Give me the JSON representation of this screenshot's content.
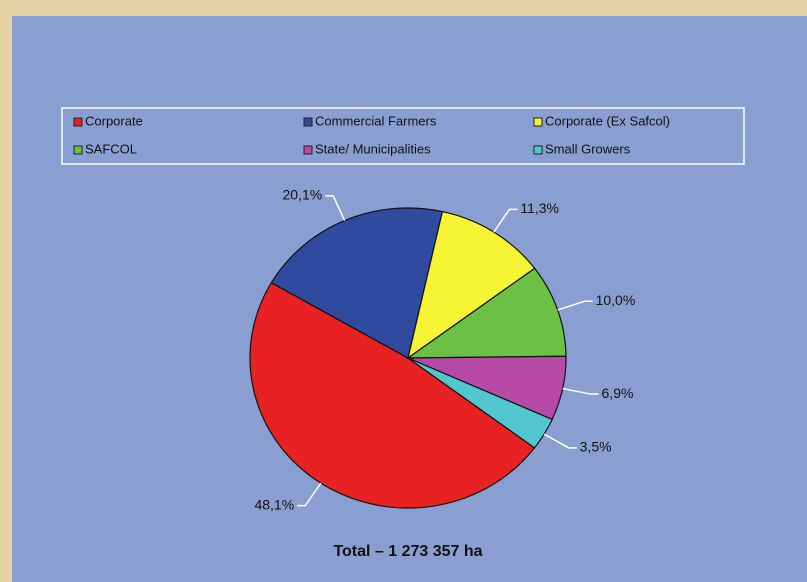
{
  "chart_data": {
    "type": "pie",
    "title": "Total – 1 273 357 ha",
    "categories": [
      "Corporate",
      "Commercial Farmers",
      "Corporate (Ex Safcol)",
      "SAFCOL",
      "State/ Municipalities",
      "Small Growers"
    ],
    "values": [
      48.1,
      20.1,
      11.3,
      10.0,
      6.9,
      3.5
    ],
    "value_labels": [
      "48,1%",
      "20,1%",
      "11,3%",
      "10,0%",
      "6,9%",
      "3,5%"
    ],
    "colors": [
      "#e82222",
      "#2f4a9f",
      "#f4f434",
      "#6cc044",
      "#b64aa6",
      "#52c6cf"
    ],
    "legend": "top"
  }
}
